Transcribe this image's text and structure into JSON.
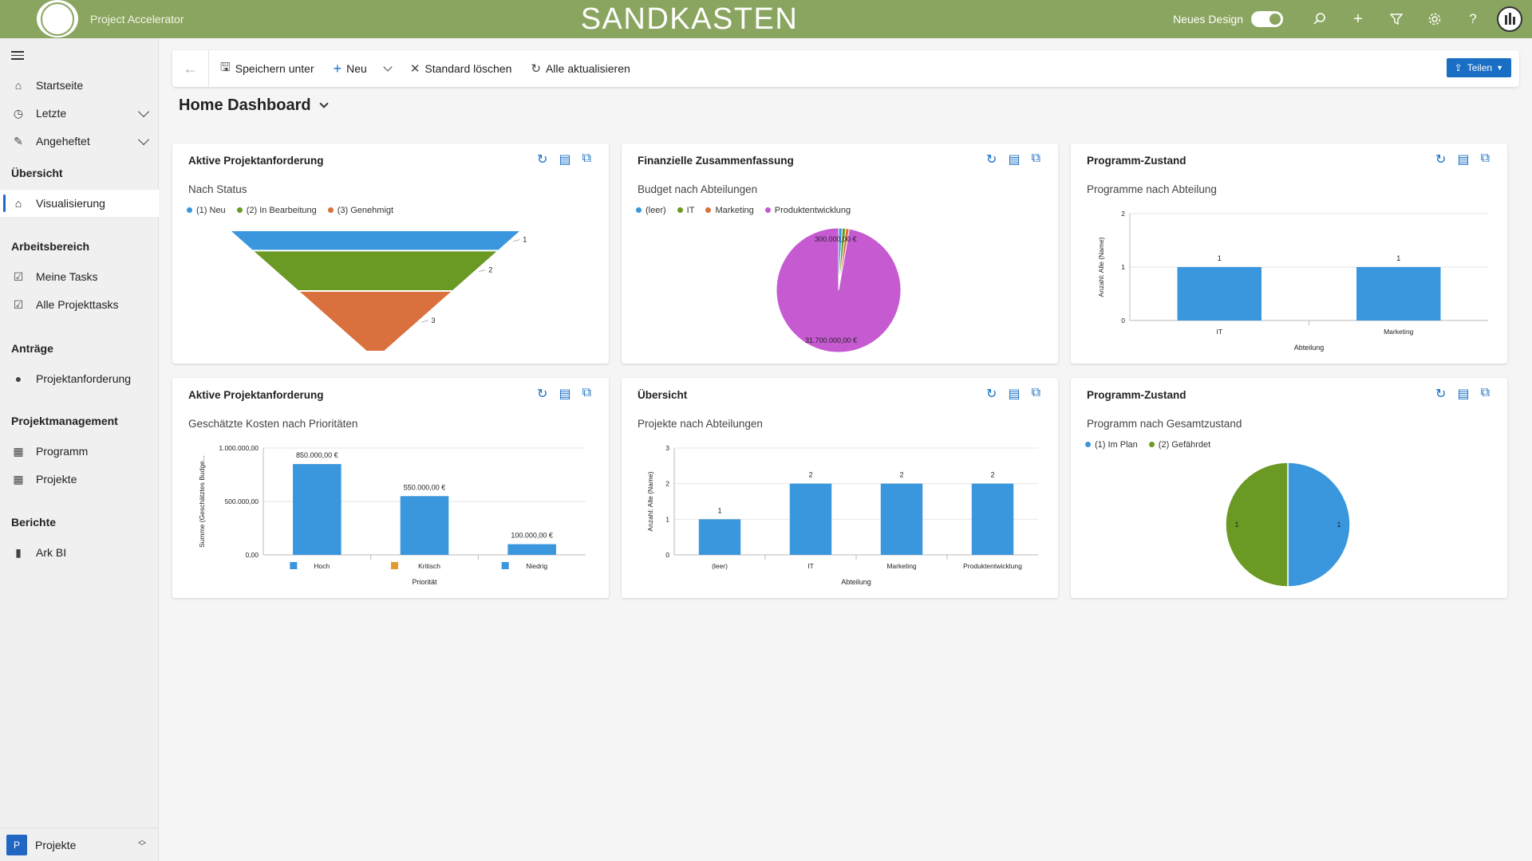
{
  "topbar": {
    "app_title": "Project Accelerator",
    "environment": "SANDKASTEN",
    "design_label": "Neues Design",
    "icons": [
      "search-icon",
      "plus-icon",
      "filter-icon",
      "gear-icon",
      "help-icon"
    ],
    "help_glyph": "?",
    "plus_glyph": "+"
  },
  "sidebar": {
    "items_top": [
      {
        "label": "Startseite",
        "icon": "home-icon"
      },
      {
        "label": "Letzte",
        "icon": "clock-icon"
      },
      {
        "label": "Angeheftet",
        "icon": "pin-icon"
      }
    ],
    "sections": {
      "overview": "Übersicht",
      "workspace": "Arbeitsbereich",
      "requests": "Anträge",
      "pm": "Projektmanagement",
      "reports": "Berichte"
    },
    "visualisierung": "Visualisierung",
    "meine_tasks": "Meine Tasks",
    "alle_tasks": "Alle Projekttasks",
    "projektanforderung": "Projektanforderung",
    "programm": "Programm",
    "projekte": "Projekte",
    "ark_bi": "Ark BI",
    "area": {
      "badge": "P",
      "label": "Projekte"
    }
  },
  "commandbar": {
    "save_as": "Speichern unter",
    "new": "Neu",
    "clear_default": "Standard löschen",
    "refresh_all": "Alle aktualisieren",
    "share": "Teilen"
  },
  "page": {
    "title": "Home Dashboard"
  },
  "colors": {
    "blue": "#3b97dd",
    "green": "#6a9a23",
    "orange": "#d9703d",
    "purple": "#c55ad1",
    "accent": "#8aa55f"
  },
  "cards": [
    {
      "title": "Aktive Projektanforderung",
      "subtitle": "Nach Status",
      "legend": [
        "(1) Neu",
        "(2) In Bearbeitung",
        "(3) Genehmigt"
      ],
      "chart_data": {
        "type": "funnel",
        "categories": [
          "(1) Neu",
          "(2) In Bearbeitung",
          "(3) Genehmigt"
        ],
        "values": [
          1,
          2,
          3
        ]
      }
    },
    {
      "title": "Finanzielle Zusammenfassung",
      "subtitle": "Budget nach Abteilungen",
      "legend": [
        "(leer)",
        "IT",
        "Marketing",
        "Produktentwicklung"
      ],
      "chart_data": {
        "type": "pie",
        "categories": [
          "(leer)",
          "IT",
          "Marketing",
          "Produktentwicklung"
        ],
        "values": [
          300000,
          300000,
          300000,
          31700000
        ],
        "labels": {
          "small": "300.000,00 €",
          "large": "31.700.000,00 €"
        }
      }
    },
    {
      "title": "Programm-Zustand",
      "subtitle": "Programme nach Abteilung",
      "chart_data": {
        "type": "bar",
        "categories": [
          "IT",
          "Marketing"
        ],
        "values": [
          1,
          1
        ],
        "ylim": [
          0,
          2
        ],
        "yticks": [
          "0",
          "1",
          "2"
        ],
        "xlabel": "Abteilung",
        "ylabel": "Anzahl: Alle (Name)"
      }
    },
    {
      "title": "Aktive Projektanforderung",
      "subtitle": "Geschätzte Kosten nach Prioritäten",
      "chart_data": {
        "type": "bar",
        "categories": [
          "Hoch",
          "Kritisch",
          "Niedrig"
        ],
        "values": [
          850000,
          550000,
          100000
        ],
        "value_labels": [
          "850.000,00 €",
          "550.000,00 €",
          "100.000,00 €"
        ],
        "ylim": [
          0,
          1000000
        ],
        "yticks": [
          "0,00",
          "500.000,00",
          "1.000.000,00"
        ],
        "xlabel": "Priorität",
        "ylabel": "Summe (Geschätztes Budge..."
      }
    },
    {
      "title": "Übersicht",
      "subtitle": "Projekte nach Abteilungen",
      "chart_data": {
        "type": "bar",
        "categories": [
          "(leer)",
          "IT",
          "Marketing",
          "Produktentwicklung"
        ],
        "values": [
          1,
          2,
          2,
          2
        ],
        "ylim": [
          0,
          3
        ],
        "yticks": [
          "0",
          "1",
          "2",
          "3"
        ],
        "xlabel": "Abteilung",
        "ylabel": "Anzahl: Alle (Name)"
      }
    },
    {
      "title": "Programm-Zustand",
      "subtitle": "Programm nach Gesamtzustand",
      "legend": [
        "(1) Im Plan",
        "(2) Gefährdet"
      ],
      "chart_data": {
        "type": "pie",
        "categories": [
          "(1) Im Plan",
          "(2) Gefährdet"
        ],
        "values": [
          1,
          1
        ]
      }
    }
  ]
}
